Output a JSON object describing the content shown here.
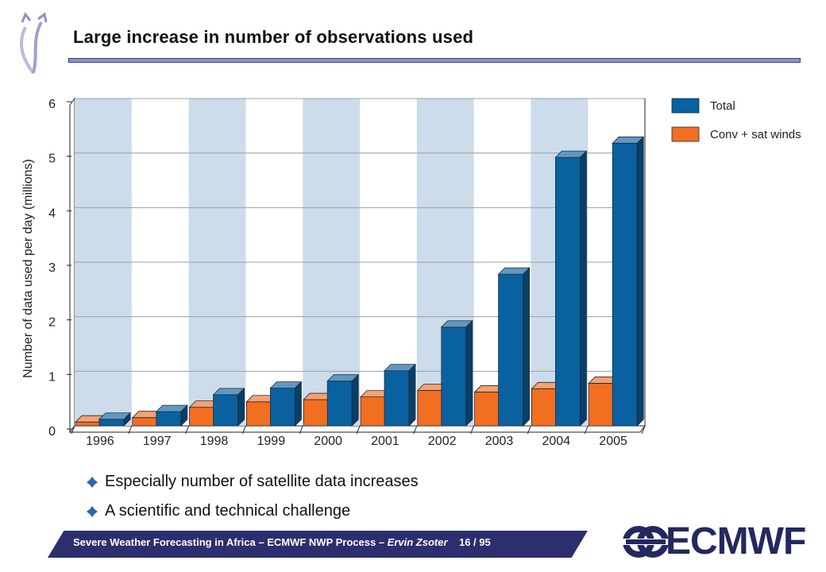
{
  "slide": {
    "title": "Large increase in number of observations used",
    "bullets": [
      "Especially number of satellite data increases",
      "A scientific and technical challenge"
    ],
    "footer": {
      "text_main": "Severe Weather Forecasting in Africa – ECMWF NWP Process – ",
      "text_author": "Ervin Zsoter",
      "page": "16 / 95"
    },
    "logo_label": "ECMWF",
    "colors": {
      "accent_bar": "#8e91c8",
      "footer_bg": "#2b2f6e",
      "logo": "#23285f"
    }
  },
  "chart_data": {
    "type": "bar",
    "title": "",
    "xlabel": "",
    "ylabel": "Number of data used per day (millions)",
    "ylim": [
      0,
      6
    ],
    "yticks": [
      0,
      1,
      2,
      3,
      4,
      5,
      6
    ],
    "grid": true,
    "legend_position": "top-right",
    "categories": [
      "1996",
      "1997",
      "1998",
      "1999",
      "2000",
      "2001",
      "2002",
      "2003",
      "2004",
      "2005"
    ],
    "series": [
      {
        "name": "Conv + sat winds",
        "color": "#f26f21",
        "values": [
          0.07,
          0.15,
          0.34,
          0.44,
          0.48,
          0.53,
          0.65,
          0.62,
          0.68,
          0.78
        ]
      },
      {
        "name": "Total",
        "color": "#0a61a0",
        "values": [
          0.12,
          0.26,
          0.57,
          0.69,
          0.82,
          1.01,
          1.81,
          2.78,
          4.92,
          5.18
        ]
      }
    ],
    "band_color": "#ccdcea"
  }
}
